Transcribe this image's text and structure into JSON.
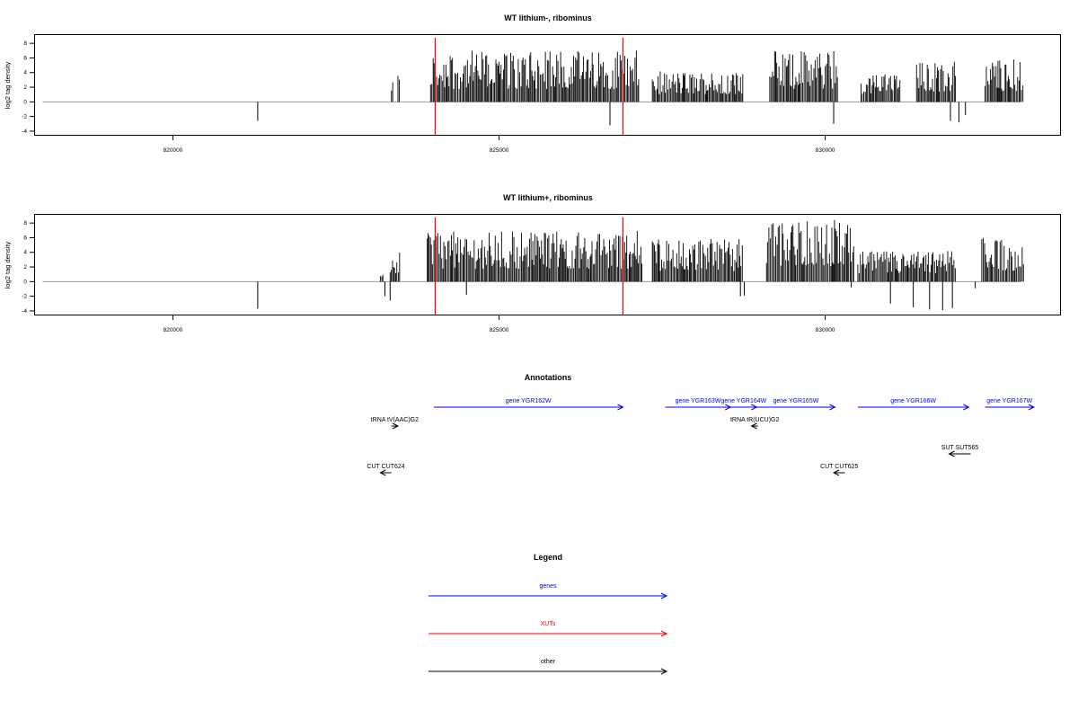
{
  "colors": {
    "gene": "#0000ff",
    "xut": "#ff0000",
    "other": "#000000",
    "baseline": "#999999",
    "marker": "#ff0000"
  },
  "chart_data": [
    {
      "type": "bar",
      "title": "WT lithium-, ribominus",
      "ylabel": "log2 tag density",
      "xlim": [
        817900,
        833600
      ],
      "ylim": [
        -4.5,
        9
      ],
      "xticks": [
        820000,
        825000,
        830000
      ],
      "yticks": [
        -4,
        -2,
        0,
        2,
        4,
        6,
        8
      ],
      "region_markers": [
        824020,
        826900
      ],
      "x_range": [
        818000,
        833000
      ],
      "positive_segments": [
        {
          "start": 823350,
          "end": 823380,
          "max": 3.8
        },
        {
          "start": 823450,
          "end": 823480,
          "max": 4.0
        },
        {
          "start": 823950,
          "end": 827150,
          "max": 7.0
        },
        {
          "start": 827350,
          "end": 828750,
          "max": 4.2
        },
        {
          "start": 829150,
          "end": 830200,
          "max": 7.0
        },
        {
          "start": 830550,
          "end": 831150,
          "max": 4.0
        },
        {
          "start": 831400,
          "end": 832000,
          "max": 5.5
        },
        {
          "start": 832450,
          "end": 833050,
          "max": 5.8
        }
      ],
      "negative_spikes": [
        {
          "x": 821300,
          "y": -2.6
        },
        {
          "x": 826700,
          "y": -3.2
        },
        {
          "x": 830130,
          "y": -3.0
        },
        {
          "x": 831920,
          "y": -2.6
        },
        {
          "x": 832050,
          "y": -2.8
        },
        {
          "x": 832150,
          "y": -1.8
        }
      ]
    },
    {
      "type": "bar",
      "title": "WT lithium+, ribominus",
      "ylabel": "log2 tag density",
      "xlim": [
        817900,
        833600
      ],
      "ylim": [
        -4.5,
        9
      ],
      "xticks": [
        820000,
        825000,
        830000
      ],
      "yticks": [
        -4,
        -2,
        0,
        2,
        4,
        6,
        8
      ],
      "region_markers": [
        824020,
        826900
      ],
      "x_range": [
        818000,
        833000
      ],
      "positive_segments": [
        {
          "start": 823180,
          "end": 823230,
          "max": 1.0
        },
        {
          "start": 823330,
          "end": 823480,
          "max": 4.0
        },
        {
          "start": 823900,
          "end": 827200,
          "max": 7.0
        },
        {
          "start": 827350,
          "end": 828750,
          "max": 5.8
        },
        {
          "start": 829100,
          "end": 830450,
          "max": 8.5
        },
        {
          "start": 830500,
          "end": 832000,
          "max": 4.2
        },
        {
          "start": 832400,
          "end": 833050,
          "max": 6.0
        }
      ],
      "negative_spikes": [
        {
          "x": 821300,
          "y": -3.7
        },
        {
          "x": 823250,
          "y": -2.0
        },
        {
          "x": 823330,
          "y": -2.6
        },
        {
          "x": 824500,
          "y": -1.8
        },
        {
          "x": 828700,
          "y": -2.0
        },
        {
          "x": 828760,
          "y": -1.9
        },
        {
          "x": 830400,
          "y": -0.8
        },
        {
          "x": 831000,
          "y": -3.0
        },
        {
          "x": 831350,
          "y": -3.5
        },
        {
          "x": 831600,
          "y": -3.8
        },
        {
          "x": 831800,
          "y": -3.9
        },
        {
          "x": 831950,
          "y": -3.6
        },
        {
          "x": 832300,
          "y": -0.9
        }
      ]
    }
  ],
  "annotations": {
    "title": "Annotations",
    "items": [
      {
        "label": "gene YGR162W",
        "type": "gene",
        "start": 824000,
        "end": 826900,
        "strand": "+",
        "row": 0
      },
      {
        "label": "gene YGR163W",
        "type": "gene",
        "start": 827550,
        "end": 828550,
        "strand": "+",
        "row": 0
      },
      {
        "label": "gene YGR164W",
        "type": "gene",
        "start": 828550,
        "end": 828950,
        "strand": "+",
        "row": 0
      },
      {
        "label": "gene YGR165W",
        "type": "gene",
        "start": 828950,
        "end": 830150,
        "strand": "+",
        "row": 0
      },
      {
        "label": "gene YGR166W",
        "type": "gene",
        "start": 830500,
        "end": 832200,
        "strand": "+",
        "row": 0
      },
      {
        "label": "gene YGR167W",
        "type": "gene",
        "start": 832450,
        "end": 833200,
        "strand": "+",
        "row": 0
      },
      {
        "label": "tRNA tV(AAC)G2",
        "type": "other",
        "start": 823350,
        "end": 823450,
        "strand": "+",
        "row": 1
      },
      {
        "label": "tRNA tR(UCU)G2",
        "type": "other",
        "start": 828870,
        "end": 828970,
        "strand": "-",
        "row": 1
      },
      {
        "label": "SUT SUT565",
        "type": "other",
        "start": 831900,
        "end": 832230,
        "strand": "-",
        "row": 2
      },
      {
        "label": "CUT CUT624",
        "type": "other",
        "start": 823180,
        "end": 823350,
        "strand": "-",
        "row": 3
      },
      {
        "label": "CUT CUT625",
        "type": "other",
        "start": 830130,
        "end": 830300,
        "strand": "-",
        "row": 3
      }
    ]
  },
  "legend": {
    "title": "Legend",
    "items": [
      {
        "label": "genes",
        "color": "#0000ff"
      },
      {
        "label": "XUTs",
        "color": "#ff0000"
      },
      {
        "label": "other",
        "color": "#000000"
      }
    ]
  }
}
